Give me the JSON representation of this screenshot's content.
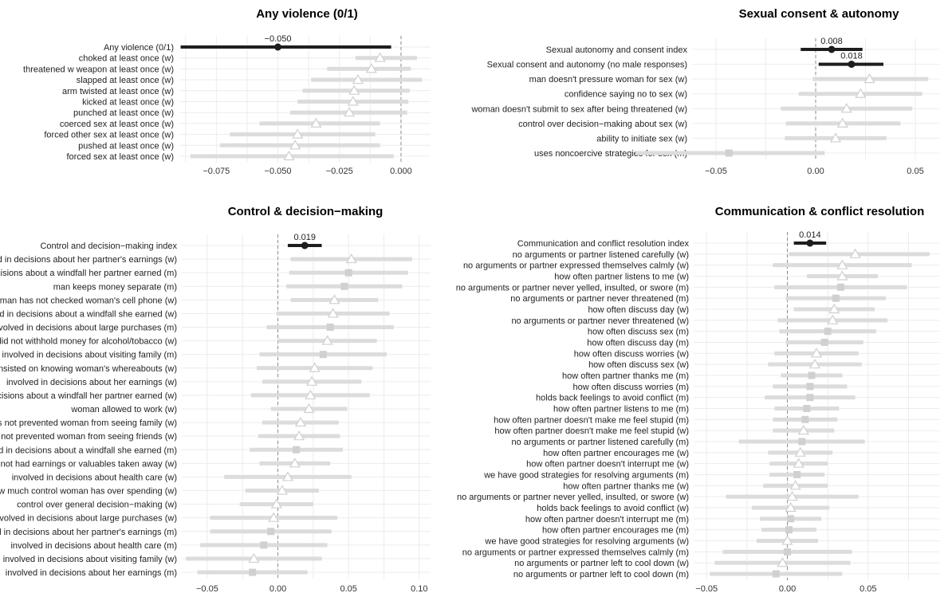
{
  "colors": {
    "ci_muted": "#dcdcdc",
    "marker_muted": "#d0d0d0",
    "ci_highlight": "#1e1e1e",
    "grid": "#ececec",
    "zero_line": "#8c8c8c"
  },
  "chart_data": [
    {
      "type": "forest",
      "title": "Any violence (0/1)",
      "xlim": [
        -0.09,
        0.012
      ],
      "xticks": [
        -0.075,
        -0.05,
        -0.025,
        0.0
      ],
      "xtick_labels": [
        "−0.075",
        "−0.050",
        "−0.025",
        "0.000"
      ],
      "rows": [
        {
          "label": "Any violence (0/1)",
          "estimate": -0.05,
          "lo": -0.0895,
          "hi": -0.004,
          "highlight": true,
          "marker": "circle",
          "value_label": "−0.050"
        },
        {
          "label": "choked at least once (w)",
          "estimate": -0.0085,
          "lo": -0.0185,
          "hi": 0.0065,
          "marker": "triangle"
        },
        {
          "label": "threatened w weapon at least once (w)",
          "estimate": -0.012,
          "lo": -0.03,
          "hi": 0.004,
          "marker": "triangle"
        },
        {
          "label": "slapped at least once (w)",
          "estimate": -0.0175,
          "lo": -0.0365,
          "hi": 0.0085,
          "marker": "triangle"
        },
        {
          "label": "arm twisted at least once (w)",
          "estimate": -0.019,
          "lo": -0.04,
          "hi": 0.0035,
          "marker": "triangle"
        },
        {
          "label": "kicked at least once (w)",
          "estimate": -0.0195,
          "lo": -0.042,
          "hi": 0.003,
          "marker": "triangle"
        },
        {
          "label": "punched at least once (w)",
          "estimate": -0.021,
          "lo": -0.045,
          "hi": 0.0025,
          "marker": "triangle"
        },
        {
          "label": "coerced sex at least once (w)",
          "estimate": -0.0345,
          "lo": -0.0575,
          "hi": -0.0085,
          "marker": "triangle"
        },
        {
          "label": "forced other sex at least once (w)",
          "estimate": -0.042,
          "lo": -0.0695,
          "hi": -0.0105,
          "marker": "triangle"
        },
        {
          "label": "pushed at least once (w)",
          "estimate": -0.043,
          "lo": -0.0735,
          "hi": -0.0085,
          "marker": "triangle"
        },
        {
          "label": "forced sex at least once (w)",
          "estimate": -0.0455,
          "lo": -0.0855,
          "hi": -0.003,
          "marker": "triangle"
        }
      ]
    },
    {
      "type": "forest",
      "title": "Sexual consent & autonomy",
      "xlim": [
        -0.062,
        0.062
      ],
      "xticks": [
        -0.05,
        0.0,
        0.05
      ],
      "xtick_labels": [
        "−0.05",
        "0.00",
        "0.05"
      ],
      "rows": [
        {
          "label": "Sexual autonomy and consent index",
          "estimate": 0.008,
          "lo": -0.0075,
          "hi": 0.0235,
          "highlight": true,
          "marker": "circle",
          "value_label": "0.008"
        },
        {
          "label": "Sexual consent and autonomy (no male responses)",
          "estimate": 0.018,
          "lo": 0.0015,
          "hi": 0.034,
          "highlight": true,
          "marker": "circle",
          "value_label": "0.018"
        },
        {
          "label": "man doesn't pressure woman for sex (w)",
          "estimate": 0.027,
          "lo": -0.0015,
          "hi": 0.0565,
          "marker": "triangle"
        },
        {
          "label": "confidence saying no to sex (w)",
          "estimate": 0.0225,
          "lo": -0.0085,
          "hi": 0.0535,
          "marker": "triangle"
        },
        {
          "label": "woman doesn't submit to sex after being threatened (w)",
          "estimate": 0.0155,
          "lo": -0.0175,
          "hi": 0.0485,
          "marker": "triangle"
        },
        {
          "label": "control over decision−making about sex (w)",
          "estimate": 0.0135,
          "lo": -0.015,
          "hi": 0.0425,
          "marker": "triangle"
        },
        {
          "label": "ability to initiate sex (w)",
          "estimate": 0.01,
          "lo": -0.0155,
          "hi": 0.0355,
          "marker": "triangle"
        },
        {
          "label": "uses noncoercive strategies for sex (m)",
          "estimate": -0.0435,
          "lo": -0.0905,
          "hi": 0.0045,
          "marker": "square"
        }
      ]
    },
    {
      "type": "forest",
      "title": "Control & decision−making",
      "xlim": [
        -0.068,
        0.108
      ],
      "xticks": [
        -0.05,
        0.0,
        0.05,
        0.1
      ],
      "xtick_labels": [
        "−0.05",
        "0.00",
        "0.05",
        "0.10"
      ],
      "rows": [
        {
          "label": "Control and decision−making index",
          "estimate": 0.019,
          "lo": 0.007,
          "hi": 0.031,
          "highlight": true,
          "marker": "circle",
          "value_label": "0.019"
        },
        {
          "label": "involved in decisions about her partner's earnings (w)",
          "estimate": 0.052,
          "lo": 0.009,
          "hi": 0.095,
          "marker": "triangle"
        },
        {
          "label": "involved in decisions about a windfall her partner earned (m)",
          "estimate": 0.05,
          "lo": 0.008,
          "hi": 0.092,
          "marker": "square"
        },
        {
          "label": "man keeps money separate (m)",
          "estimate": 0.047,
          "lo": 0.006,
          "hi": 0.088,
          "marker": "square"
        },
        {
          "label": "man has not checked woman's cell phone (w)",
          "estimate": 0.04,
          "lo": 0.009,
          "hi": 0.071,
          "marker": "triangle"
        },
        {
          "label": "involved in decisions about a windfall she earned (w)",
          "estimate": 0.039,
          "lo": -0.001,
          "hi": 0.079,
          "marker": "triangle"
        },
        {
          "label": "involved in decisions about large purchases (m)",
          "estimate": 0.037,
          "lo": -0.008,
          "hi": 0.082,
          "marker": "square"
        },
        {
          "label": "man did not withhold money for alcohol/tobacco (w)",
          "estimate": 0.035,
          "lo": 0.0,
          "hi": 0.07,
          "marker": "triangle"
        },
        {
          "label": "involved in decisions about visiting family (m)",
          "estimate": 0.032,
          "lo": -0.013,
          "hi": 0.077,
          "marker": "square"
        },
        {
          "label": "man has not insisted on knowing woman's whereabouts (w)",
          "estimate": 0.026,
          "lo": -0.015,
          "hi": 0.067,
          "marker": "triangle"
        },
        {
          "label": "involved in decisions about her earnings (w)",
          "estimate": 0.024,
          "lo": -0.011,
          "hi": 0.059,
          "marker": "triangle"
        },
        {
          "label": "involved in decisions about a windfall her partner earned (w)",
          "estimate": 0.023,
          "lo": -0.019,
          "hi": 0.065,
          "marker": "triangle"
        },
        {
          "label": "woman allowed to work (w)",
          "estimate": 0.022,
          "lo": -0.005,
          "hi": 0.049,
          "marker": "triangle"
        },
        {
          "label": "man has not prevented woman from seeing family (w)",
          "estimate": 0.016,
          "lo": -0.011,
          "hi": 0.043,
          "marker": "triangle"
        },
        {
          "label": "man has not prevented woman from seeing friends (w)",
          "estimate": 0.015,
          "lo": -0.014,
          "hi": 0.044,
          "marker": "triangle"
        },
        {
          "label": "involved in decisions about a windfall she earned (m)",
          "estimate": 0.013,
          "lo": -0.02,
          "hi": 0.046,
          "marker": "square"
        },
        {
          "label": "man has not had earnings or valuables taken away (w)",
          "estimate": 0.012,
          "lo": -0.013,
          "hi": 0.037,
          "marker": "triangle"
        },
        {
          "label": "involved in decisions about health care (w)",
          "estimate": 0.007,
          "lo": -0.038,
          "hi": 0.052,
          "marker": "triangle"
        },
        {
          "label": "how much control woman has over spending (w)",
          "estimate": 0.003,
          "lo": -0.023,
          "hi": 0.029,
          "marker": "triangle"
        },
        {
          "label": "control over general decision−making (w)",
          "estimate": -0.001,
          "lo": -0.027,
          "hi": 0.025,
          "marker": "triangle"
        },
        {
          "label": "involved in decisions about large purchases (w)",
          "estimate": -0.003,
          "lo": -0.048,
          "hi": 0.042,
          "marker": "triangle"
        },
        {
          "label": "involved in decisions about her partner's earnings (m)",
          "estimate": -0.005,
          "lo": -0.048,
          "hi": 0.038,
          "marker": "square"
        },
        {
          "label": "involved in decisions about health care (m)",
          "estimate": -0.01,
          "lo": -0.055,
          "hi": 0.035,
          "marker": "square"
        },
        {
          "label": "involved in decisions about visiting family (w)",
          "estimate": -0.017,
          "lo": -0.065,
          "hi": 0.031,
          "marker": "triangle"
        },
        {
          "label": "involved in decisions about her earnings (m)",
          "estimate": -0.018,
          "lo": -0.057,
          "hi": 0.021,
          "marker": "square"
        }
      ]
    },
    {
      "type": "forest",
      "title": "Communication & conflict resolution",
      "xlim": [
        -0.058,
        0.094
      ],
      "xticks": [
        -0.05,
        0.0,
        0.05
      ],
      "xtick_labels": [
        "−0.05",
        "0.00",
        "0.05"
      ],
      "rows": [
        {
          "label": "Communication and conflict resolution index",
          "estimate": 0.014,
          "lo": 0.004,
          "hi": 0.024,
          "highlight": true,
          "marker": "circle",
          "value_label": "0.014"
        },
        {
          "label": "no arguments or partner listened carefully (w)",
          "estimate": 0.042,
          "lo": 0.001,
          "hi": 0.088,
          "marker": "triangle"
        },
        {
          "label": "no arguments or partner expressed themselves calmly (w)",
          "estimate": 0.034,
          "lo": -0.009,
          "hi": 0.077,
          "marker": "triangle"
        },
        {
          "label": "how often partner listens to me (w)",
          "estimate": 0.034,
          "lo": 0.012,
          "hi": 0.056,
          "marker": "triangle"
        },
        {
          "label": "no arguments or partner never yelled, insulted, or swore (m)",
          "estimate": 0.033,
          "lo": -0.008,
          "hi": 0.074,
          "marker": "square"
        },
        {
          "label": "no arguments or partner never threatened (m)",
          "estimate": 0.03,
          "lo": -0.001,
          "hi": 0.061,
          "marker": "square"
        },
        {
          "label": "how often discuss day (w)",
          "estimate": 0.029,
          "lo": 0.004,
          "hi": 0.054,
          "marker": "triangle"
        },
        {
          "label": "no arguments or partner never threatened (w)",
          "estimate": 0.028,
          "lo": -0.006,
          "hi": 0.062,
          "marker": "triangle"
        },
        {
          "label": "how often discuss sex (m)",
          "estimate": 0.025,
          "lo": -0.005,
          "hi": 0.055,
          "marker": "square"
        },
        {
          "label": "how often discuss day (m)",
          "estimate": 0.023,
          "lo": -0.001,
          "hi": 0.047,
          "marker": "square"
        },
        {
          "label": "how often discuss worries (w)",
          "estimate": 0.018,
          "lo": -0.008,
          "hi": 0.044,
          "marker": "triangle"
        },
        {
          "label": "how often discuss sex (w)",
          "estimate": 0.017,
          "lo": -0.012,
          "hi": 0.046,
          "marker": "triangle"
        },
        {
          "label": "how often partner thanks me (m)",
          "estimate": 0.015,
          "lo": -0.004,
          "hi": 0.034,
          "marker": "square"
        },
        {
          "label": "how often discuss worries (m)",
          "estimate": 0.014,
          "lo": -0.009,
          "hi": 0.037,
          "marker": "square"
        },
        {
          "label": "holds back feelings to avoid conflict (m)",
          "estimate": 0.014,
          "lo": -0.014,
          "hi": 0.042,
          "marker": "square"
        },
        {
          "label": "how often partner listens to me (m)",
          "estimate": 0.012,
          "lo": -0.008,
          "hi": 0.032,
          "marker": "square"
        },
        {
          "label": "how often partner doesn't make me feel stupid (m)",
          "estimate": 0.011,
          "lo": -0.009,
          "hi": 0.031,
          "marker": "square"
        },
        {
          "label": "how often partner doesn't make me feel stupid (w)",
          "estimate": 0.01,
          "lo": -0.009,
          "hi": 0.029,
          "marker": "triangle"
        },
        {
          "label": "no arguments or partner listened carefully (m)",
          "estimate": 0.009,
          "lo": -0.03,
          "hi": 0.048,
          "marker": "square"
        },
        {
          "label": "how often partner encourages me (w)",
          "estimate": 0.008,
          "lo": -0.012,
          "hi": 0.028,
          "marker": "triangle"
        },
        {
          "label": "how often partner doesn't interrupt me (w)",
          "estimate": 0.007,
          "lo": -0.011,
          "hi": 0.025,
          "marker": "triangle"
        },
        {
          "label": "we have good strategies for resolving arguments (m)",
          "estimate": 0.006,
          "lo": -0.011,
          "hi": 0.023,
          "marker": "square"
        },
        {
          "label": "how often partner thanks me (w)",
          "estimate": 0.005,
          "lo": -0.015,
          "hi": 0.025,
          "marker": "triangle"
        },
        {
          "label": "no arguments or partner never yelled, insulted, or swore (w)",
          "estimate": 0.003,
          "lo": -0.038,
          "hi": 0.044,
          "marker": "triangle"
        },
        {
          "label": "holds back feelings to avoid conflict (w)",
          "estimate": 0.002,
          "lo": -0.022,
          "hi": 0.026,
          "marker": "triangle"
        },
        {
          "label": "how often partner doesn't interrupt me (m)",
          "estimate": 0.002,
          "lo": -0.017,
          "hi": 0.021,
          "marker": "square"
        },
        {
          "label": "how often partner encourages me (m)",
          "estimate": 0.001,
          "lo": -0.016,
          "hi": 0.018,
          "marker": "square"
        },
        {
          "label": "we have good strategies for resolving arguments (w)",
          "estimate": 0.0,
          "lo": -0.019,
          "hi": 0.019,
          "marker": "triangle"
        },
        {
          "label": "no arguments or partner expressed themselves calmly (m)",
          "estimate": 0.0,
          "lo": -0.04,
          "hi": 0.04,
          "marker": "square"
        },
        {
          "label": "no arguments or partner left to cool down (w)",
          "estimate": -0.003,
          "lo": -0.045,
          "hi": 0.039,
          "marker": "triangle"
        },
        {
          "label": "no arguments or partner left to cool down (m)",
          "estimate": -0.007,
          "lo": -0.048,
          "hi": 0.034,
          "marker": "square"
        }
      ]
    }
  ]
}
